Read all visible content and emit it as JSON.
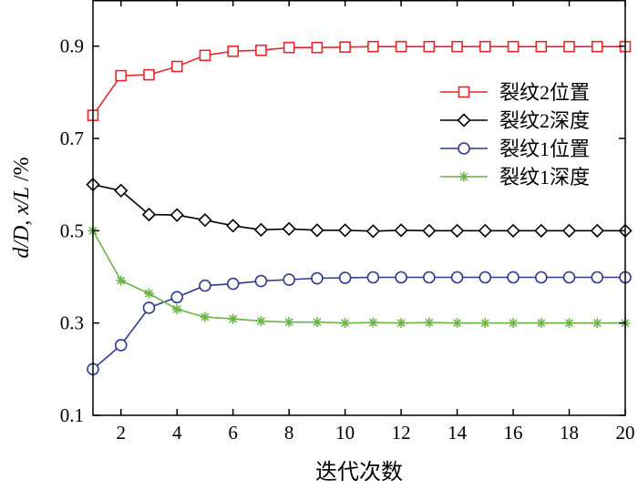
{
  "chart_data": {
    "type": "line",
    "xlabel": "迭代次数",
    "ylabel_parts": [
      "d/D",
      ", ",
      "x/L",
      " /%"
    ],
    "xlim": [
      1,
      20
    ],
    "ylim": [
      0.1,
      1.0
    ],
    "xticks": [
      2,
      4,
      6,
      8,
      10,
      12,
      14,
      16,
      18,
      20
    ],
    "yticks": [
      0.1,
      0.3,
      0.5,
      0.7,
      0.9
    ],
    "xtick_labels": [
      "2",
      "4",
      "6",
      "8",
      "10",
      "12",
      "14",
      "16",
      "18",
      "20"
    ],
    "ytick_labels": [
      "0.1",
      "0.3",
      "0.5",
      "0.7",
      "0.9"
    ],
    "x": [
      1,
      2,
      3,
      4,
      5,
      6,
      7,
      8,
      9,
      10,
      11,
      12,
      13,
      14,
      15,
      16,
      17,
      18,
      19,
      20
    ],
    "legend_position": "right-middle",
    "series": [
      {
        "name": "裂纹2位置",
        "color": "#e8262a",
        "marker": "square",
        "values": [
          0.75,
          0.836,
          0.838,
          0.856,
          0.88,
          0.889,
          0.891,
          0.897,
          0.897,
          0.898,
          0.899,
          0.899,
          0.899,
          0.899,
          0.899,
          0.899,
          0.899,
          0.899,
          0.899,
          0.899
        ]
      },
      {
        "name": "裂纹2深度",
        "color": "#000000",
        "marker": "diamond",
        "values": [
          0.6,
          0.587,
          0.535,
          0.534,
          0.523,
          0.511,
          0.502,
          0.504,
          0.501,
          0.501,
          0.499,
          0.501,
          0.5,
          0.5,
          0.5,
          0.5,
          0.5,
          0.5,
          0.5,
          0.5
        ]
      },
      {
        "name": "裂纹1位置",
        "color": "#2e3a8e",
        "marker": "circle",
        "values": [
          0.2,
          0.252,
          0.333,
          0.356,
          0.381,
          0.385,
          0.391,
          0.394,
          0.397,
          0.398,
          0.399,
          0.399,
          0.399,
          0.399,
          0.399,
          0.399,
          0.399,
          0.399,
          0.399,
          0.399
        ]
      },
      {
        "name": "裂纹1深度",
        "color": "#6ab446",
        "marker": "star",
        "values": [
          0.5,
          0.392,
          0.364,
          0.33,
          0.313,
          0.309,
          0.304,
          0.302,
          0.302,
          0.3,
          0.301,
          0.3,
          0.301,
          0.3,
          0.3,
          0.3,
          0.3,
          0.3,
          0.3,
          0.3
        ]
      }
    ]
  }
}
